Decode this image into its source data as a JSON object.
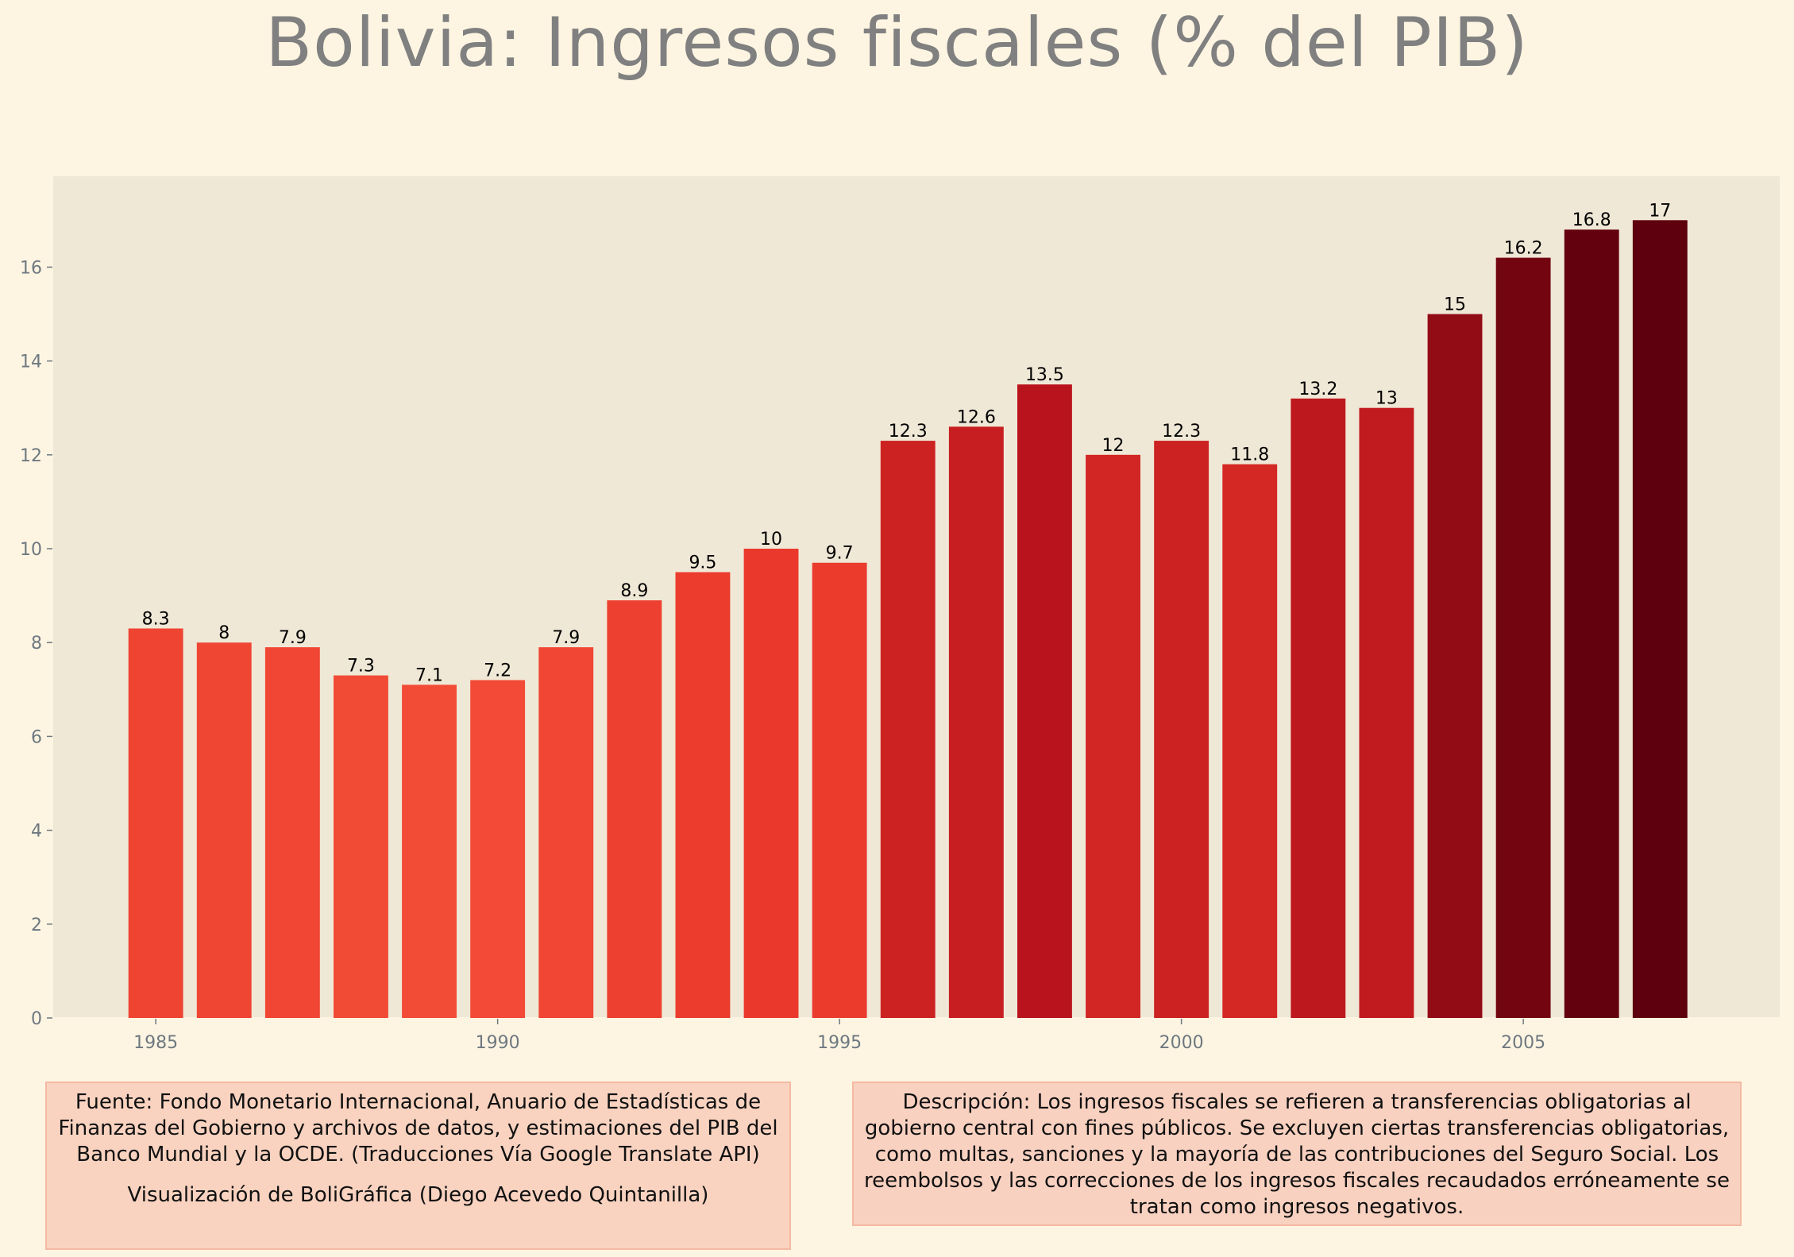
{
  "title": "Bolivia:  Ingresos fiscales (% del PIB)",
  "source_text": "Fuente: Fondo Monetario Internacional, Anuario de Estadísticas de Finanzas del Gobierno y archivos de datos, y estimaciones del PIB del Banco Mundial y la OCDE. (Traducciones Vía Google Translate API)",
  "credit_text": "Visualización de BoliGráfica (Diego Acevedo Quintanilla)",
  "description_text": "Descripción: Los ingresos fiscales se refieren a transferencias obligatorias al gobierno central con fines públicos. Se excluyen ciertas transferencias obligatorias, como multas, sanciones y la mayoría de las contribuciones del Seguro Social. Los reembolsos y las correcciones de los ingresos fiscales recaudados erróneamente se tratan como ingresos negativos.",
  "colors": {
    "background": "#fdf5e2",
    "plot_background": "#f0e8d6",
    "title": "#808080",
    "tick": "#6e7880",
    "box_fill": "#f9d3c0",
    "box_border": "#f4b9a3",
    "bar_low": "#f24b36",
    "bar_high": "#5e000d"
  },
  "chart_data": {
    "type": "bar",
    "title": "Bolivia:  Ingresos fiscales (% del PIB)",
    "xlabel": "",
    "ylabel": "",
    "x": [
      1985,
      1986,
      1987,
      1988,
      1989,
      1990,
      1991,
      1992,
      1993,
      1994,
      1995,
      1996,
      1997,
      1998,
      1999,
      2000,
      2001,
      2002,
      2003,
      2004,
      2005,
      2006,
      2007
    ],
    "values": [
      8.3,
      8,
      7.9,
      7.3,
      7.1,
      7.2,
      7.9,
      8.9,
      9.5,
      10,
      9.7,
      12.3,
      12.6,
      13.5,
      12,
      12.3,
      11.8,
      13.2,
      13,
      15,
      16.2,
      16.8,
      17
    ],
    "data_labels": [
      "8.3",
      "8",
      "7.9",
      "7.3",
      "7.1",
      "7.2",
      "7.9",
      "8.9",
      "9.5",
      "10",
      "9.7",
      "12.3",
      "12.6",
      "13.5",
      "12",
      "12.3",
      "11.8",
      "13.2",
      "13",
      "15",
      "16.2",
      "16.8",
      "17"
    ],
    "xlim": [
      1983.5,
      2008.75
    ],
    "ylim": [
      0,
      17.9
    ],
    "xticks": [
      1985,
      1990,
      1995,
      2000,
      2005
    ],
    "xtick_labels": [
      "1985",
      "1990",
      "1995",
      "2000",
      "2005"
    ],
    "yticks": [
      0,
      2,
      4,
      6,
      8,
      10,
      12,
      14,
      16
    ],
    "ytick_labels": [
      "0",
      "2",
      "4",
      "6",
      "8",
      "10",
      "12",
      "14",
      "16"
    ],
    "color_scale": "sequential red, darker for higher values",
    "grid": false,
    "legend": "none"
  }
}
